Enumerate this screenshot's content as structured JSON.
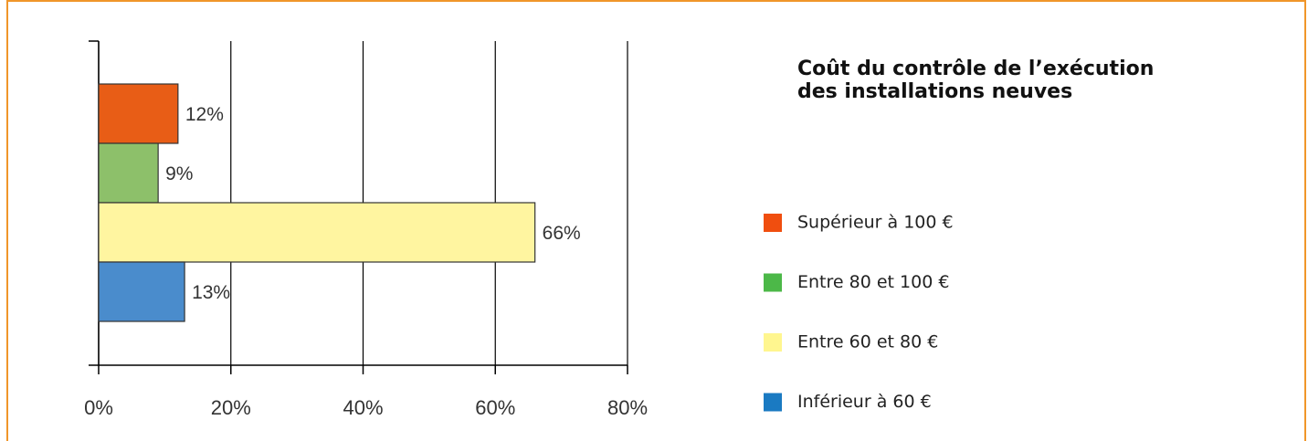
{
  "chart_data": {
    "type": "hbar",
    "title": [
      "Coût du contrôle de l’exécution",
      "des installations neuves"
    ],
    "categories": [
      "Supérieur à 100 €",
      "Entre 80 et 100 €",
      "Entre 60 et 80 €",
      "Inférieur à 60 €"
    ],
    "values": [
      12,
      9,
      66,
      13
    ],
    "value_labels": [
      "12%",
      "9%",
      "66%",
      "13%"
    ],
    "colors": [
      "#e85d16",
      "#8dc06a",
      "#fff5a0",
      "#4a8ccc"
    ],
    "legend_colors": [
      "#f04e0f",
      "#4cb848",
      "#fff68f",
      "#1a7ac2"
    ],
    "xlim": [
      0,
      80
    ],
    "xticks": [
      {
        "value": 0,
        "label": "0%"
      },
      {
        "value": 20,
        "label": "20%"
      },
      {
        "value": 40,
        "label": "40%"
      },
      {
        "value": 60,
        "label": "60%"
      },
      {
        "value": 80,
        "label": "80%"
      }
    ],
    "grid": true
  }
}
